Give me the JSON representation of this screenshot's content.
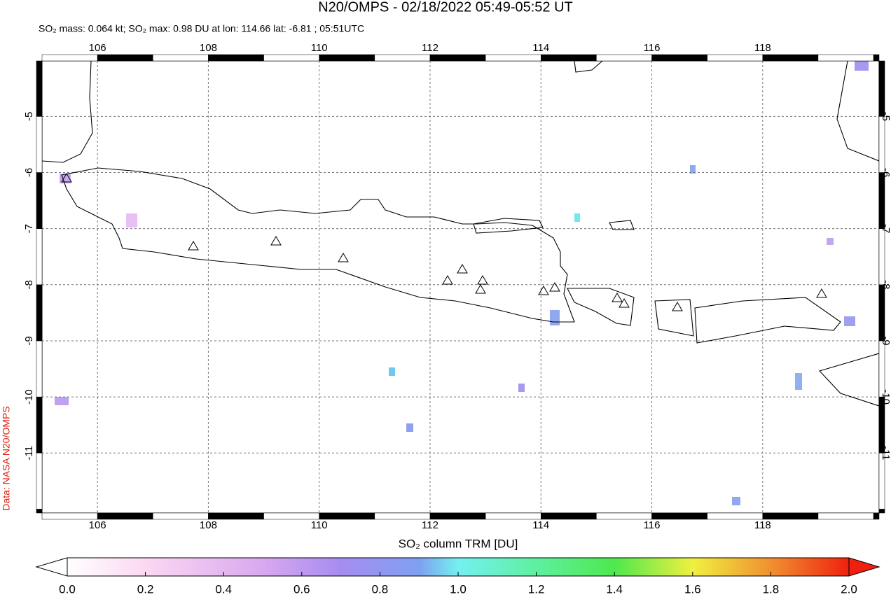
{
  "chart_data": {
    "type": "map",
    "title": "N20/OMPS - 02/18/2022 05:49-05:52 UT",
    "subtitle": "SO₂ mass: 0.064 kt; SO₂ max: 0.98 DU at lon: 114.66 lat: -6.81 ; 05:51UTC",
    "side_label": "Data: NASA N20/OMPS",
    "xlim": [
      105,
      120.1
    ],
    "xticks": [
      106,
      108,
      110,
      112,
      114,
      116,
      118
    ],
    "ylim": [
      -12.07,
      -4.01
    ],
    "yticks": [
      -5,
      -6,
      -7,
      -8,
      -9,
      -10,
      -11
    ],
    "grid": true,
    "colorbar": {
      "label": "SO₂ column TRM [DU]",
      "lim": [
        0,
        2
      ],
      "ticks": [
        {
          "value": 0,
          "label": "0.0"
        },
        {
          "value": 0.2,
          "label": "0.2"
        },
        {
          "value": 0.4,
          "label": "0.4"
        },
        {
          "value": 0.6,
          "label": "0.6"
        },
        {
          "value": 0.8,
          "label": "0.8"
        },
        {
          "value": 1,
          "label": "1.0"
        },
        {
          "value": 1.2,
          "label": "1.2"
        },
        {
          "value": 1.4,
          "label": "1.4"
        },
        {
          "value": 1.6,
          "label": "1.6"
        },
        {
          "value": 1.8,
          "label": "1.8"
        },
        {
          "value": 2,
          "label": "2.0"
        }
      ]
    }
  }
}
